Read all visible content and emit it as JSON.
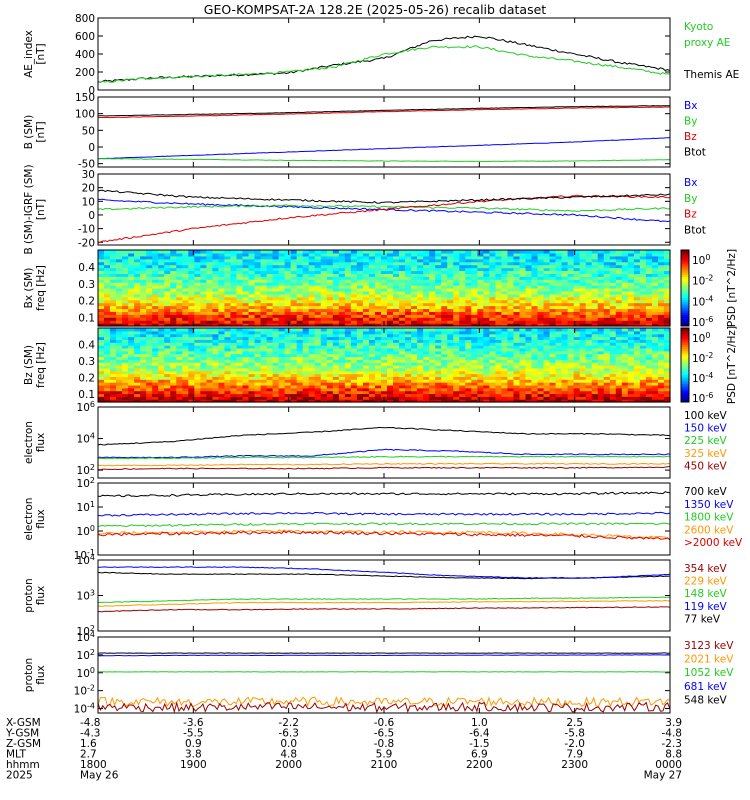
{
  "title": "GEO-KOMPSAT-2A 128.2E (2025-05-26) recalib dataset",
  "colors": {
    "black": "#000000",
    "blue": "#0000ff",
    "green": "#22cc22",
    "red": "#dd0000",
    "orange": "#ff9900",
    "darkred": "#990000"
  },
  "panels": [
    {
      "id": "ae",
      "ylabel": [
        "AE_index",
        "[nT]"
      ],
      "ylim": [
        0,
        800
      ],
      "yticks": [
        "0",
        "200",
        "400",
        "600",
        "800"
      ],
      "legend": [
        {
          "text": "Kyoto",
          "color": "#22cc22"
        },
        {
          "text": "proxy AE",
          "color": "#22cc22"
        },
        {
          "text": "",
          "color": "#000000"
        },
        {
          "text": "Themis AE",
          "color": "#000000"
        }
      ]
    },
    {
      "id": "bsm",
      "ylabel": [
        "B (SM)",
        "[nT]"
      ],
      "ylim": [
        -60,
        150
      ],
      "yticks": [
        "-50",
        "0",
        "50",
        "100",
        "150"
      ],
      "legend": [
        {
          "text": "Bx",
          "color": "#0000ff"
        },
        {
          "text": "By",
          "color": "#22cc22"
        },
        {
          "text": "Bz",
          "color": "#dd0000"
        },
        {
          "text": "Btot",
          "color": "#000000"
        }
      ]
    },
    {
      "id": "bigrf",
      "ylabel": [
        "B (SM)-IGRF (SM)",
        "[nT]"
      ],
      "ylim": [
        -22,
        30
      ],
      "yticks": [
        "-20",
        "-10",
        "0",
        "10",
        "20",
        "30"
      ],
      "legend": [
        {
          "text": "Bx",
          "color": "#0000ff"
        },
        {
          "text": "By",
          "color": "#22cc22"
        },
        {
          "text": "Bz",
          "color": "#dd0000"
        },
        {
          "text": "Btot",
          "color": "#000000"
        }
      ]
    },
    {
      "id": "specbx",
      "ylabel": [
        "Bx (SM)",
        "freq [Hz]"
      ],
      "ylim": [
        0.05,
        0.5
      ],
      "yticks": [
        "0.1",
        "0.2",
        "0.3",
        "0.4"
      ],
      "colorbar": {
        "ticks": [
          "10^0",
          "10^-2",
          "10^-4",
          "10^-6"
        ],
        "label": "PSD [nT^2/Hz]"
      }
    },
    {
      "id": "specbz",
      "ylabel": [
        "Bz (SM)",
        "freq [Hz]"
      ],
      "ylim": [
        0.05,
        0.5
      ],
      "yticks": [
        "0.1",
        "0.2",
        "0.3",
        "0.4"
      ],
      "colorbar": {
        "ticks": [
          "10^0",
          "10^-2",
          "10^-4",
          "10^-6"
        ],
        "label": "PSD [nT^2/Hz]"
      }
    },
    {
      "id": "elo",
      "ylabel": [
        "electron",
        "flux"
      ],
      "yticks": [
        "10^2",
        "10^4",
        "10^6"
      ],
      "legend": [
        {
          "text": "100 keV",
          "color": "#000000"
        },
        {
          "text": "150 keV",
          "color": "#0000ff"
        },
        {
          "text": "225 keV",
          "color": "#22cc22"
        },
        {
          "text": "325 keV",
          "color": "#ff9900"
        },
        {
          "text": "450 keV",
          "color": "#990000"
        }
      ]
    },
    {
      "id": "ehi",
      "ylabel": [
        "electron",
        "flux"
      ],
      "yticks": [
        "10^-1",
        "10^0",
        "10^1",
        "10^2"
      ],
      "legend": [
        {
          "text": "700 keV",
          "color": "#000000"
        },
        {
          "text": "1350 keV",
          "color": "#0000ff"
        },
        {
          "text": "1800 keV",
          "color": "#22cc22"
        },
        {
          "text": "2600 keV",
          "color": "#ff9900"
        },
        {
          "text": ">2000 keV",
          "color": "#dd0000"
        }
      ]
    },
    {
      "id": "plo",
      "ylabel": [
        "proton",
        "flux"
      ],
      "yticks": [
        "10^2",
        "10^3",
        "10^4"
      ],
      "legend": [
        {
          "text": "354 keV",
          "color": "#990000"
        },
        {
          "text": "229 keV",
          "color": "#ff9900"
        },
        {
          "text": "148 keV",
          "color": "#22cc22"
        },
        {
          "text": "119 keV",
          "color": "#0000ff"
        },
        {
          "text": "77 keV",
          "color": "#000000"
        }
      ]
    },
    {
      "id": "phi",
      "ylabel": [
        "proton",
        "flux"
      ],
      "yticks": [
        "10^-4",
        "10^-2",
        "10^0",
        "10^2",
        "10^4"
      ],
      "legend": [
        {
          "text": "3123 keV",
          "color": "#990000"
        },
        {
          "text": "2021 keV",
          "color": "#ff9900"
        },
        {
          "text": "1052 keV",
          "color": "#22cc22"
        },
        {
          "text": "681 keV",
          "color": "#0000ff"
        },
        {
          "text": "548 keV",
          "color": "#000000"
        }
      ]
    }
  ],
  "footer": {
    "row_labels": [
      "X-GSM",
      "Y-GSM",
      "Z-GSM",
      "MLT",
      "hhmm",
      "2025"
    ],
    "columns": [
      [
        "-4.8",
        "-4.3",
        "1.6",
        "2.7",
        "1800",
        "May 26"
      ],
      [
        "-3.6",
        "-5.5",
        "0.9",
        "3.8",
        "1900",
        ""
      ],
      [
        "-2.2",
        "-6.3",
        "0.0",
        "4.8",
        "2000",
        ""
      ],
      [
        "-0.6",
        "-6.5",
        "-0.8",
        "5.9",
        "2100",
        ""
      ],
      [
        "1.0",
        "-6.4",
        "-1.5",
        "6.9",
        "2200",
        ""
      ],
      [
        "2.5",
        "-5.8",
        "-2.0",
        "7.9",
        "2300",
        ""
      ],
      [
        "3.9",
        "-4.8",
        "-2.3",
        "8.8",
        "0000",
        "May 27"
      ]
    ]
  },
  "chart_data": [
    {
      "type": "line",
      "title": "GEO-KOMPSAT-2A 128.2E (2025-05-26) recalib dataset",
      "ylabel": "AE_index [nT]",
      "x": [
        "1800",
        "1830",
        "1900",
        "1930",
        "2000",
        "2030",
        "2100",
        "2130",
        "2200",
        "2230",
        "2300",
        "2330",
        "0000"
      ],
      "ylim": [
        0,
        800
      ],
      "series": [
        {
          "name": "Themis AE",
          "color": "#000000",
          "values": [
            90,
            130,
            150,
            170,
            190,
            280,
            350,
            550,
            600,
            500,
            400,
            300,
            220
          ]
        },
        {
          "name": "Kyoto proxy AE",
          "color": "#22cc22",
          "values": [
            80,
            130,
            150,
            170,
            200,
            260,
            400,
            480,
            480,
            380,
            320,
            250,
            170
          ]
        }
      ]
    },
    {
      "type": "line",
      "ylabel": "B (SM) [nT]",
      "x": [
        "1800",
        "1900",
        "2000",
        "2100",
        "2200",
        "2300",
        "0000"
      ],
      "ylim": [
        -60,
        150
      ],
      "series": [
        {
          "name": "Bx",
          "color": "#0000ff",
          "values": [
            -35,
            -25,
            -15,
            -5,
            5,
            15,
            28
          ]
        },
        {
          "name": "By",
          "color": "#22cc22",
          "values": [
            -35,
            -37,
            -40,
            -42,
            -43,
            -42,
            -38
          ]
        },
        {
          "name": "Bz",
          "color": "#dd0000",
          "values": [
            88,
            93,
            99,
            106,
            112,
            117,
            120
          ]
        },
        {
          "name": "Btot",
          "color": "#000000",
          "values": [
            93,
            98,
            103,
            110,
            116,
            121,
            124
          ]
        }
      ]
    },
    {
      "type": "line",
      "ylabel": "B (SM)-IGRF (SM) [nT]",
      "x": [
        "1800",
        "1900",
        "2000",
        "2100",
        "2200",
        "2300",
        "0000"
      ],
      "ylim": [
        -22,
        30
      ],
      "series": [
        {
          "name": "Bx",
          "color": "#0000ff",
          "values": [
            11,
            8,
            6,
            4,
            2,
            0,
            -5
          ]
        },
        {
          "name": "By",
          "color": "#22cc22",
          "values": [
            4,
            6,
            7,
            6,
            5,
            3,
            5
          ]
        },
        {
          "name": "Bz",
          "color": "#dd0000",
          "values": [
            -20,
            -10,
            -2,
            4,
            10,
            14,
            13
          ]
        },
        {
          "name": "Btot",
          "color": "#000000",
          "values": [
            18,
            13,
            11,
            9,
            11,
            13,
            15
          ]
        }
      ]
    },
    {
      "type": "heatmap",
      "ylabel": "Bx (SM) freq [Hz]",
      "x": [
        "1800",
        "1900",
        "2000",
        "2100",
        "2200",
        "2300",
        "0000"
      ],
      "frequencies": [
        0.05,
        0.1,
        0.15,
        0.2,
        0.25,
        0.3,
        0.35,
        0.4,
        0.45,
        0.5
      ],
      "psd_profile_log10": [
        0,
        -0.6,
        -1.5,
        -2.2,
        -2.8,
        -3.2,
        -3.5,
        -3.8,
        -4.0,
        -4.1
      ],
      "colorbar_range_log10": [
        -6,
        1
      ],
      "colorbar_label": "PSD [nT^2/Hz]"
    },
    {
      "type": "heatmap",
      "ylabel": "Bz (SM) freq [Hz]",
      "x": [
        "1800",
        "1900",
        "2000",
        "2100",
        "2200",
        "2300",
        "0000"
      ],
      "frequencies": [
        0.05,
        0.1,
        0.15,
        0.2,
        0.25,
        0.3,
        0.35,
        0.4,
        0.45,
        0.5
      ],
      "psd_profile_log10": [
        0.3,
        -0.4,
        -1.2,
        -2.0,
        -2.6,
        -3.0,
        -3.3,
        -3.6,
        -3.9,
        -4.0
      ],
      "colorbar_range_log10": [
        -6,
        1
      ],
      "colorbar_label": "PSD [nT^2/Hz]"
    },
    {
      "type": "line",
      "ylabel": "electron flux",
      "yscale": "log",
      "x": [
        "1800",
        "1900",
        "2000",
        "2030",
        "2100",
        "2130",
        "2200",
        "2300",
        "0000"
      ],
      "ylim_log10": [
        1.5,
        6
      ],
      "series": [
        {
          "name": "100 keV",
          "color": "#000000",
          "values_log10": [
            3.6,
            3.8,
            4.2,
            4.4,
            4.7,
            4.5,
            4.3,
            4.3,
            4.2
          ]
        },
        {
          "name": "150 keV",
          "color": "#0000ff",
          "values_log10": [
            2.8,
            2.8,
            2.9,
            2.9,
            3.3,
            3.2,
            3.0,
            3.0,
            3.0
          ]
        },
        {
          "name": "225 keV",
          "color": "#22cc22",
          "values_log10": [
            2.75,
            2.75,
            2.8,
            2.8,
            2.85,
            2.85,
            2.85,
            2.85,
            2.85
          ]
        },
        {
          "name": "325 keV",
          "color": "#ff9900",
          "values_log10": [
            2.3,
            2.3,
            2.35,
            2.35,
            2.4,
            2.4,
            2.4,
            2.4,
            2.4
          ]
        },
        {
          "name": "450 keV",
          "color": "#990000",
          "values_log10": [
            2.05,
            2.1,
            2.1,
            2.1,
            2.15,
            2.15,
            2.15,
            2.15,
            2.2
          ]
        }
      ]
    },
    {
      "type": "line",
      "ylabel": "electron flux",
      "yscale": "log",
      "x": [
        "1800",
        "1900",
        "2000",
        "2100",
        "2200",
        "2300",
        "0000"
      ],
      "ylim_log10": [
        -1,
        2
      ],
      "series": [
        {
          "name": "700 keV",
          "color": "#000000",
          "values_log10": [
            1.45,
            1.5,
            1.55,
            1.55,
            1.55,
            1.55,
            1.6
          ]
        },
        {
          "name": "1350 keV",
          "color": "#0000ff",
          "values_log10": [
            0.65,
            0.7,
            0.75,
            0.7,
            0.7,
            0.7,
            0.75
          ]
        },
        {
          "name": "1800 keV",
          "color": "#22cc22",
          "values_log10": [
            0.2,
            0.25,
            0.3,
            0.3,
            0.3,
            0.3,
            0.3
          ]
        },
        {
          "name": "2600 keV",
          "color": "#ff9900",
          "values_log10": [
            -0.1,
            -0.05,
            0.0,
            -0.05,
            -0.05,
            -0.15,
            -0.3
          ]
        },
        {
          "name": ">2000 keV",
          "color": "#dd0000",
          "values_log10": [
            -0.15,
            -0.1,
            -0.05,
            -0.1,
            -0.15,
            -0.2,
            -0.35
          ]
        }
      ]
    },
    {
      "type": "line",
      "ylabel": "proton flux",
      "yscale": "log",
      "x": [
        "1800",
        "1900",
        "2000",
        "2100",
        "2130",
        "2200",
        "2230",
        "2300",
        "0000"
      ],
      "ylim_log10": [
        2,
        4
      ],
      "series": [
        {
          "name": "77 keV",
          "color": "#000000",
          "values_log10": [
            3.65,
            3.6,
            3.6,
            3.6,
            3.55,
            3.5,
            3.48,
            3.5,
            3.55
          ]
        },
        {
          "name": "119 keV",
          "color": "#0000ff",
          "values_log10": [
            3.8,
            3.8,
            3.8,
            3.75,
            3.65,
            3.55,
            3.5,
            3.5,
            3.6
          ]
        },
        {
          "name": "148 keV",
          "color": "#22cc22",
          "values_log10": [
            2.8,
            2.85,
            2.9,
            2.9,
            2.9,
            2.9,
            2.92,
            2.93,
            2.95
          ]
        },
        {
          "name": "229 keV",
          "color": "#ff9900",
          "values_log10": [
            2.7,
            2.75,
            2.8,
            2.8,
            2.8,
            2.82,
            2.83,
            2.84,
            2.85
          ]
        },
        {
          "name": "354 keV",
          "color": "#990000",
          "values_log10": [
            2.55,
            2.6,
            2.6,
            2.62,
            2.62,
            2.64,
            2.65,
            2.66,
            2.68
          ]
        }
      ]
    },
    {
      "type": "line",
      "ylabel": "proton flux",
      "yscale": "log",
      "x": [
        "1800",
        "1900",
        "2000",
        "2100",
        "2200",
        "2300",
        "0000"
      ],
      "ylim_log10": [
        -4.5,
        4
      ],
      "series": [
        {
          "name": "548 keV",
          "color": "#000000",
          "values_log10": [
            2.2,
            2.2,
            2.2,
            2.2,
            2.2,
            2.2,
            2.2
          ]
        },
        {
          "name": "681 keV",
          "color": "#0000ff",
          "values_log10": [
            1.9,
            1.95,
            1.95,
            1.95,
            1.97,
            1.98,
            2.0
          ]
        },
        {
          "name": "1052 keV",
          "color": "#22cc22",
          "values_log10": [
            0.1,
            0.1,
            0.1,
            0.1,
            0.1,
            0.1,
            0.1
          ]
        },
        {
          "name": "2021 keV",
          "color": "#ff9900",
          "values_log10": [
            -3.2,
            -3.3,
            -3.2,
            -3.3,
            -3.2,
            -3.3,
            -3.2
          ]
        },
        {
          "name": "3123 keV",
          "color": "#990000",
          "values_log10": [
            -3.8,
            -3.9,
            -3.8,
            -3.9,
            -3.8,
            -3.9,
            -3.8
          ]
        }
      ]
    }
  ]
}
